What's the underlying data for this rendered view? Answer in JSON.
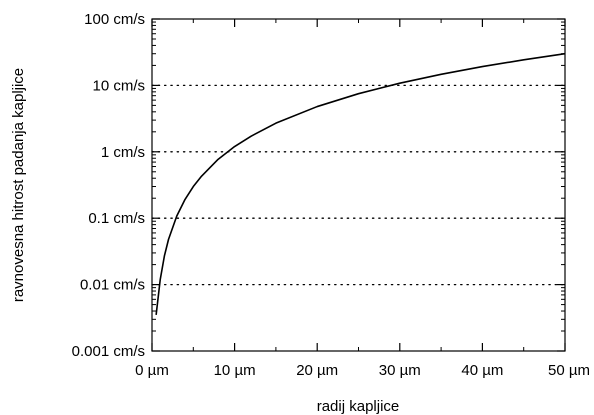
{
  "chart_data": {
    "type": "line",
    "xlabel": "radij kapljice",
    "ylabel": "ravnovesna hitrost padanja kapljice",
    "xlim": [
      0,
      50
    ],
    "ylim": [
      0.001,
      100
    ],
    "y_scale": "log",
    "x_ticks": [
      {
        "value": 0,
        "label": "0 µm"
      },
      {
        "value": 10,
        "label": "10 µm"
      },
      {
        "value": 20,
        "label": "20 µm"
      },
      {
        "value": 30,
        "label": "30 µm"
      },
      {
        "value": 40,
        "label": "40 µm"
      },
      {
        "value": 50,
        "label": "50 µm"
      }
    ],
    "y_ticks": [
      {
        "value": 0.001,
        "label": "0.001 cm/s"
      },
      {
        "value": 0.01,
        "label": "0.01 cm/s"
      },
      {
        "value": 0.1,
        "label": "0.1 cm/s"
      },
      {
        "value": 1,
        "label": "1 cm/s"
      },
      {
        "value": 10,
        "label": "10 cm/s"
      },
      {
        "value": 100,
        "label": "100 cm/s"
      }
    ],
    "grid": "horizontal dotted",
    "series": [
      {
        "color": "#000000",
        "x": [
          0.5,
          1,
          1.5,
          2,
          3,
          4,
          5,
          6,
          8,
          10,
          12,
          15,
          20,
          25,
          30,
          35,
          40,
          45,
          50
        ],
        "y": [
          0.0035,
          0.012,
          0.027,
          0.048,
          0.108,
          0.192,
          0.3,
          0.43,
          0.77,
          1.2,
          1.72,
          2.7,
          4.8,
          7.5,
          10.8,
          14.7,
          19.2,
          24.3,
          30
        ]
      }
    ]
  }
}
